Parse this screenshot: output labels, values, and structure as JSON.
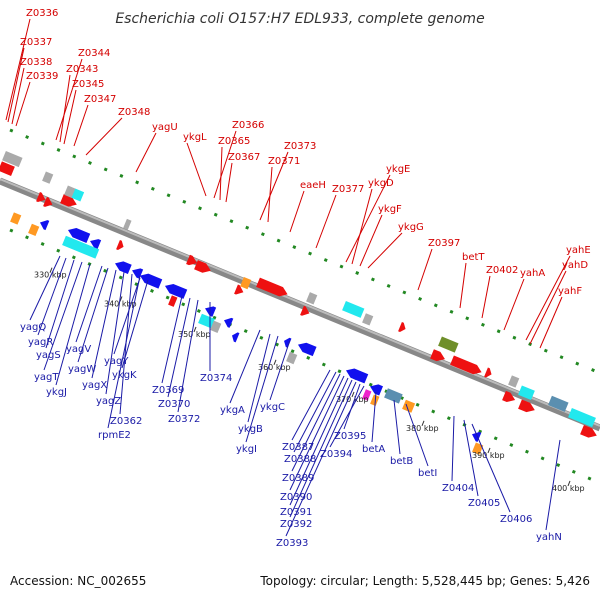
{
  "title": "Escherichia coli O157:H7 EDL933, complete genome",
  "footer": {
    "accession": "Accession: NC_002655",
    "summary": "Topology: circular; Length: 5,528,445 bp; Genes: 5,426"
  },
  "colors": {
    "forward_gene": "#ee1111",
    "reverse_gene": "#1111ee",
    "grey_feature": "#aaaaaa",
    "cyan_feature": "#22e8ee",
    "orange_feature": "#ff9922",
    "olive_feature": "#6f8f2a",
    "steel_feature": "#5b8fb0",
    "magenta_feature": "#ee22cc",
    "gc_marker": "#228822",
    "backbone": "#888888"
  },
  "ticks": [
    "330 kbp",
    "340 kbp",
    "350 kbp",
    "360 kbp",
    "370 kbp",
    "380 kbp",
    "390 kbp",
    "400 kbp"
  ],
  "top_labels": [
    "Z0336",
    "Z0337",
    "Z0338",
    "Z0339",
    "Z0344",
    "Z0343",
    "Z0345",
    "Z0347",
    "Z0348",
    "yagU",
    "ykgL",
    "Z0366",
    "Z0365",
    "Z0367",
    "Z0373",
    "Z0371",
    "eaeH",
    "Z0377",
    "ykgE",
    "ykgD",
    "ykgF",
    "ykgG",
    "Z0397",
    "betT",
    "Z0402",
    "yahA",
    "yahE",
    "yahD",
    "yahF"
  ],
  "bottom_labels": [
    "yagQ",
    "yagR",
    "yagS",
    "yagT",
    "ykgJ",
    "yagV",
    "yagW",
    "yagX",
    "yagZ",
    "Z0362",
    "rpmE2",
    "yagY",
    "ykgK",
    "Z0369",
    "Z0370",
    "Z0372",
    "Z0374",
    "ykgA",
    "ykgB",
    "ykgI",
    "ykgC",
    "Z0387",
    "Z0388",
    "Z0389",
    "Z0390",
    "Z0391",
    "Z0392",
    "Z0393",
    "Z0395",
    "Z0394",
    "betA",
    "betB",
    "betI",
    "Z0404",
    "Z0405",
    "Z0406",
    "yahN"
  ]
}
